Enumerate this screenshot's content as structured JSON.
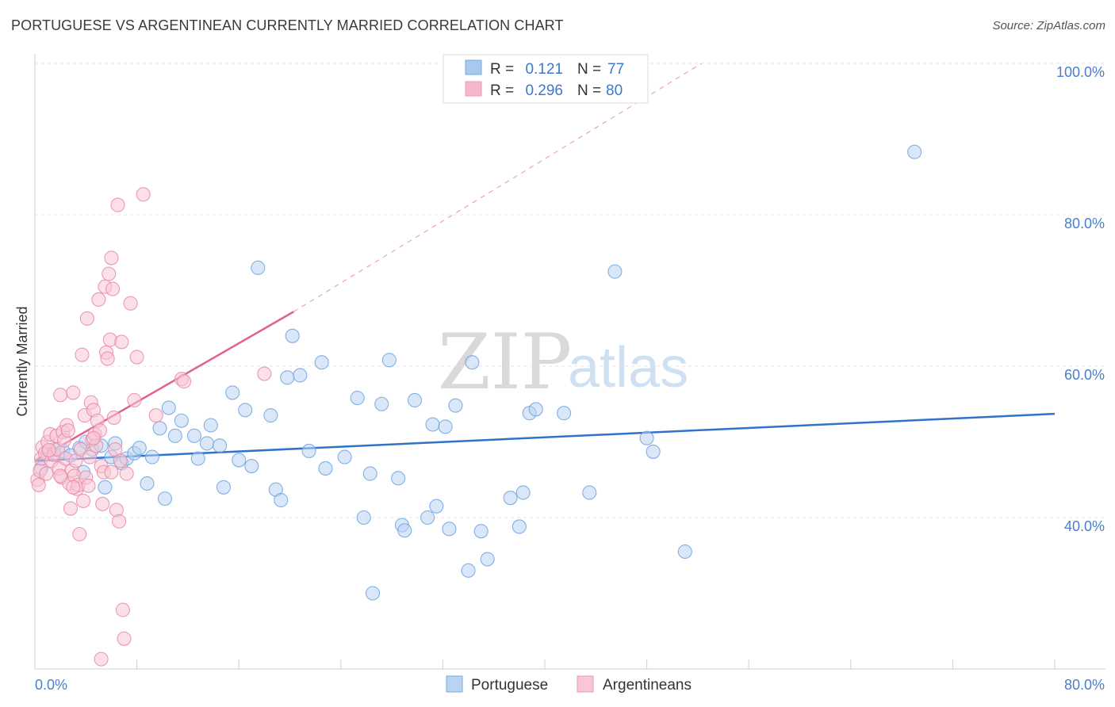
{
  "title": "PORTUGUESE VS ARGENTINEAN CURRENTLY MARRIED CORRELATION CHART",
  "source": "Source: ZipAtlas.com",
  "watermark": {
    "zip": "ZIP",
    "atlas": "atlas"
  },
  "legend_top": {
    "r_label": "R =",
    "n_label": "N =",
    "rows": [
      {
        "r": "0.121",
        "n": "77",
        "color": "#a9c8ee"
      },
      {
        "r": "0.296",
        "n": "80",
        "color": "#f5b8cb"
      }
    ]
  },
  "chart_data": {
    "type": "scatter",
    "title": "PORTUGUESE VS ARGENTINEAN CURRENTLY MARRIED CORRELATION CHART",
    "xlabel": "",
    "ylabel": "Currently Married",
    "xlim": [
      0,
      80
    ],
    "ylim": [
      20,
      100
    ],
    "x_tick_labels": [
      "0.0%",
      "80.0%"
    ],
    "y_ticks": [
      40,
      60,
      80,
      100
    ],
    "y_tick_labels": [
      "40.0%",
      "60.0%",
      "80.0%",
      "100.0%"
    ],
    "grid": true,
    "legend_position": "bottom",
    "series": [
      {
        "name": "Portuguese",
        "color": "#6fa3e0",
        "fill": "#b9d3f2",
        "r": 0.121,
        "n": 77,
        "trend": {
          "x": [
            0,
            80
          ],
          "y": [
            47.5,
            53.7
          ],
          "style": "solid"
        },
        "points": [
          [
            1.0,
            48.5
          ],
          [
            1.5,
            49.0
          ],
          [
            2.2,
            48.8
          ],
          [
            3.5,
            49.2
          ],
          [
            3.8,
            46.0
          ],
          [
            4.5,
            49.0
          ],
          [
            5.2,
            49.5
          ],
          [
            5.5,
            44.0
          ],
          [
            6.0,
            48.0
          ],
          [
            6.3,
            49.8
          ],
          [
            6.8,
            47.2
          ],
          [
            7.2,
            47.8
          ],
          [
            7.8,
            48.5
          ],
          [
            8.2,
            49.2
          ],
          [
            8.8,
            44.5
          ],
          [
            9.2,
            48.0
          ],
          [
            9.8,
            51.8
          ],
          [
            10.2,
            42.5
          ],
          [
            10.5,
            54.5
          ],
          [
            11.0,
            50.8
          ],
          [
            11.5,
            52.8
          ],
          [
            12.5,
            50.8
          ],
          [
            12.8,
            47.8
          ],
          [
            13.5,
            49.8
          ],
          [
            13.8,
            52.2
          ],
          [
            14.5,
            49.5
          ],
          [
            14.8,
            44.0
          ],
          [
            15.5,
            56.5
          ],
          [
            16.0,
            47.6
          ],
          [
            16.5,
            54.2
          ],
          [
            17.0,
            46.8
          ],
          [
            17.5,
            73.0
          ],
          [
            18.5,
            53.5
          ],
          [
            18.9,
            43.7
          ],
          [
            19.3,
            42.3
          ],
          [
            19.8,
            58.5
          ],
          [
            20.2,
            64.0
          ],
          [
            20.8,
            58.8
          ],
          [
            21.5,
            48.8
          ],
          [
            22.5,
            60.5
          ],
          [
            22.8,
            46.5
          ],
          [
            24.3,
            48.0
          ],
          [
            25.3,
            55.8
          ],
          [
            25.8,
            40.0
          ],
          [
            26.3,
            45.8
          ],
          [
            26.5,
            30.0
          ],
          [
            27.2,
            55.0
          ],
          [
            27.8,
            60.8
          ],
          [
            28.5,
            45.2
          ],
          [
            28.8,
            39.0
          ],
          [
            29.0,
            38.3
          ],
          [
            29.8,
            55.5
          ],
          [
            30.8,
            40.0
          ],
          [
            31.2,
            52.3
          ],
          [
            31.5,
            41.5
          ],
          [
            32.2,
            52.0
          ],
          [
            32.5,
            38.5
          ],
          [
            33.0,
            54.8
          ],
          [
            34.0,
            33.0
          ],
          [
            34.3,
            60.5
          ],
          [
            35.0,
            38.2
          ],
          [
            35.5,
            34.5
          ],
          [
            37.3,
            42.6
          ],
          [
            38.0,
            38.8
          ],
          [
            38.3,
            43.3
          ],
          [
            38.8,
            53.8
          ],
          [
            39.3,
            54.3
          ],
          [
            41.5,
            53.8
          ],
          [
            43.5,
            43.3
          ],
          [
            45.5,
            72.5
          ],
          [
            48.0,
            50.5
          ],
          [
            48.5,
            48.7
          ],
          [
            51.0,
            35.5
          ],
          [
            69.0,
            88.3
          ],
          [
            0.5,
            46.5
          ],
          [
            2.8,
            48.2
          ],
          [
            4.0,
            50.0
          ]
        ]
      },
      {
        "name": "Argentineans",
        "color": "#e98aa6",
        "fill": "#f8c6d5",
        "r": 0.296,
        "n": 80,
        "trend": {
          "x": [
            0,
            20.3
          ],
          "y": [
            47.5,
            67.2
          ],
          "style": "solid",
          "extended_x": [
            20.3,
            52.3
          ],
          "extended_y": [
            67.2,
            100
          ],
          "extended_style": "dashed"
        },
        "points": [
          [
            0.2,
            45.0
          ],
          [
            0.3,
            44.3
          ],
          [
            0.4,
            46.2
          ],
          [
            0.5,
            47.8
          ],
          [
            0.6,
            49.3
          ],
          [
            0.8,
            48.5
          ],
          [
            0.9,
            45.8
          ],
          [
            1.0,
            50.0
          ],
          [
            1.2,
            51.0
          ],
          [
            1.3,
            47.5
          ],
          [
            1.5,
            48.3
          ],
          [
            1.7,
            50.8
          ],
          [
            1.8,
            49.0
          ],
          [
            1.9,
            46.5
          ],
          [
            2.0,
            56.2
          ],
          [
            2.1,
            45.3
          ],
          [
            2.2,
            51.3
          ],
          [
            2.3,
            50.2
          ],
          [
            2.4,
            47.8
          ],
          [
            2.5,
            52.2
          ],
          [
            2.6,
            51.5
          ],
          [
            2.7,
            44.5
          ],
          [
            2.8,
            41.2
          ],
          [
            2.9,
            46.2
          ],
          [
            3.0,
            56.5
          ],
          [
            3.1,
            45.5
          ],
          [
            3.2,
            47.5
          ],
          [
            3.3,
            43.8
          ],
          [
            3.4,
            44.3
          ],
          [
            3.5,
            37.8
          ],
          [
            3.6,
            49.0
          ],
          [
            3.7,
            61.5
          ],
          [
            3.8,
            42.2
          ],
          [
            3.9,
            53.5
          ],
          [
            4.0,
            45.3
          ],
          [
            4.1,
            66.3
          ],
          [
            4.2,
            44.2
          ],
          [
            4.3,
            48.0
          ],
          [
            4.4,
            55.2
          ],
          [
            4.5,
            50.3
          ],
          [
            4.6,
            54.2
          ],
          [
            4.7,
            51.0
          ],
          [
            4.8,
            49.5
          ],
          [
            4.9,
            52.8
          ],
          [
            5.0,
            68.8
          ],
          [
            5.1,
            51.5
          ],
          [
            5.2,
            46.8
          ],
          [
            5.3,
            41.8
          ],
          [
            5.4,
            46.0
          ],
          [
            5.5,
            70.5
          ],
          [
            5.6,
            61.8
          ],
          [
            5.7,
            61.0
          ],
          [
            5.8,
            72.2
          ],
          [
            5.9,
            63.5
          ],
          [
            6.0,
            74.3
          ],
          [
            6.1,
            70.2
          ],
          [
            6.2,
            53.2
          ],
          [
            6.3,
            49.0
          ],
          [
            6.4,
            41.0
          ],
          [
            6.5,
            81.3
          ],
          [
            6.6,
            39.5
          ],
          [
            6.7,
            47.5
          ],
          [
            6.8,
            63.2
          ],
          [
            6.9,
            27.8
          ],
          [
            7.0,
            24.0
          ],
          [
            7.2,
            45.8
          ],
          [
            7.5,
            68.3
          ],
          [
            7.8,
            55.5
          ],
          [
            8.0,
            61.2
          ],
          [
            8.5,
            82.7
          ],
          [
            9.5,
            53.5
          ],
          [
            11.5,
            58.3
          ],
          [
            11.7,
            58.0
          ],
          [
            18.0,
            59.0
          ],
          [
            5.2,
            21.3
          ],
          [
            2.0,
            45.5
          ],
          [
            1.1,
            48.9
          ],
          [
            3.0,
            44.0
          ],
          [
            4.6,
            50.5
          ],
          [
            6.0,
            46.0
          ]
        ]
      }
    ]
  },
  "bottom_legend": [
    {
      "label": "Portuguese",
      "color": "#b9d3f2"
    },
    {
      "label": "Argentineans",
      "color": "#f8c6d5"
    }
  ]
}
